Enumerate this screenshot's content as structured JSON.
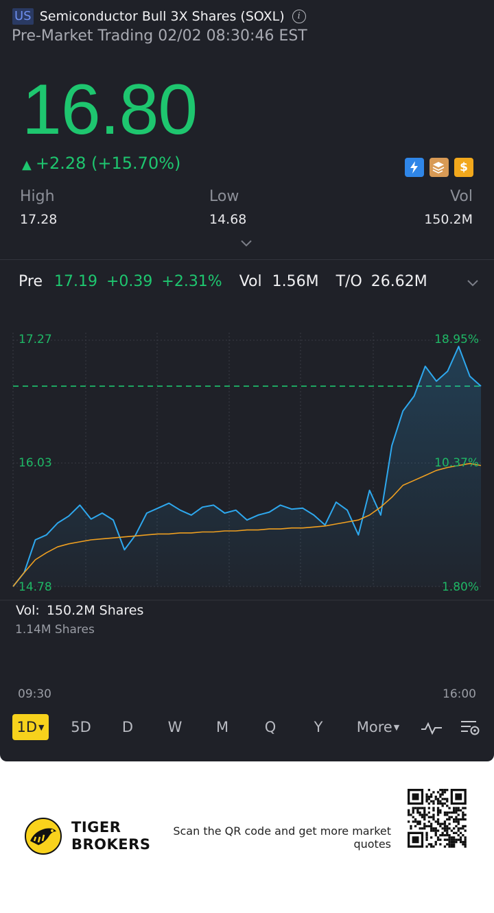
{
  "header": {
    "market_badge": "US",
    "stock_name": "Semiconductor Bull 3X Shares (SOXL)",
    "session": "Pre-Market Trading",
    "datetime": "02/02 08:30:46 EST"
  },
  "quote": {
    "price": "16.80",
    "change": "+2.28",
    "change_pct": "(+15.70%)",
    "up_color": "#1ec66f"
  },
  "badges": [
    "flash-icon",
    "stack-icon",
    "dollar-icon"
  ],
  "stats": {
    "high_label": "High",
    "high_value": "17.28",
    "low_label": "Low",
    "low_value": "14.68",
    "vol_label": "Vol",
    "vol_value": "150.2M"
  },
  "pre_market": {
    "label": "Pre",
    "price": "17.19",
    "change": "+0.39",
    "change_pct": "+2.31%",
    "vol_label": "Vol",
    "vol_value": "1.56M",
    "to_label": "T/O",
    "to_value": "26.62M"
  },
  "chart_data": {
    "type": "line",
    "y_labels_left": [
      "17.27",
      "16.03",
      "14.78"
    ],
    "y_labels_right": [
      "18.95%",
      "10.37%",
      "1.80%"
    ],
    "x_labels": [
      "09:30",
      "16:00"
    ],
    "ylim": [
      14.78,
      17.27
    ],
    "reference_price": 16.8,
    "series": [
      {
        "color": "#2ea8ee",
        "values": [
          14.78,
          14.92,
          15.25,
          15.3,
          15.42,
          15.49,
          15.6,
          15.46,
          15.52,
          15.45,
          15.15,
          15.3,
          15.52,
          15.57,
          15.62,
          15.55,
          15.5,
          15.58,
          15.6,
          15.52,
          15.55,
          15.45,
          15.5,
          15.53,
          15.6,
          15.56,
          15.57,
          15.5,
          15.4,
          15.63,
          15.55,
          15.3,
          15.75,
          15.5,
          16.2,
          16.55,
          16.7,
          17.0,
          16.85,
          16.95,
          17.2,
          16.9,
          16.8
        ],
        "stroke": 2
      },
      {
        "color": "#f0a020",
        "values": [
          14.78,
          14.92,
          15.05,
          15.12,
          15.18,
          15.21,
          15.23,
          15.25,
          15.26,
          15.27,
          15.28,
          15.29,
          15.3,
          15.31,
          15.31,
          15.32,
          15.32,
          15.33,
          15.33,
          15.34,
          15.34,
          15.35,
          15.35,
          15.36,
          15.36,
          15.37,
          15.37,
          15.38,
          15.39,
          15.41,
          15.43,
          15.45,
          15.5,
          15.58,
          15.68,
          15.8,
          15.85,
          15.9,
          15.95,
          15.98,
          16.0,
          16.02,
          16.0
        ],
        "stroke": 1.6
      }
    ],
    "volume": {
      "label": "Vol:",
      "total": "150.2M Shares",
      "scale": "1.14M Shares",
      "max": 1.14
    }
  },
  "periods": [
    {
      "label": "1D",
      "active": true
    },
    {
      "label": "5D"
    },
    {
      "label": "D"
    },
    {
      "label": "W"
    },
    {
      "label": "M"
    },
    {
      "label": "Q"
    },
    {
      "label": "Y"
    },
    {
      "label": "More"
    }
  ],
  "footer": {
    "brand_line1": "TIGER",
    "brand_line2": "BROKERS",
    "scan_text": "Scan the QR code and get more market quotes"
  }
}
